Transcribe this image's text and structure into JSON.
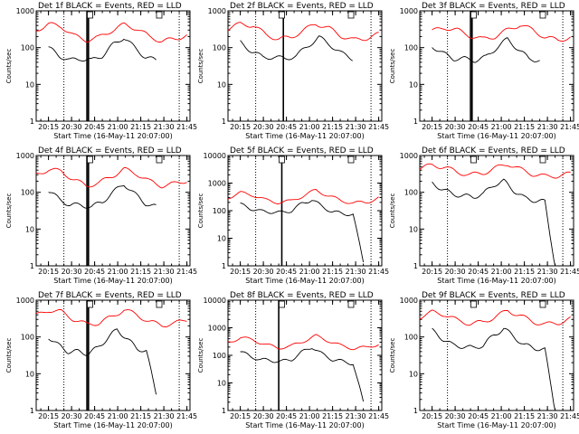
{
  "chart_data": [
    {
      "type": "line",
      "title": "Det 1f BLACK = Events, RED = LLD",
      "xlabel": "Start Time (16-May-11 20:07:00)",
      "ylabel": "Counts/sec",
      "y_scale": "log",
      "ylim": [
        1,
        1000
      ],
      "x_ticks": [
        "20:15",
        "20:30",
        "20:45",
        "21:00",
        "21:15",
        "21:30",
        "21:45"
      ],
      "y_ticks": [
        "1",
        "10",
        "100",
        "1000"
      ],
      "series": [
        {
          "color": "#000000",
          "x_start": "20:15",
          "x_end": "21:25",
          "values": [
            100,
            60,
            45,
            50,
            45,
            60,
            120,
            190,
            100,
            55,
            45
          ]
        },
        {
          "color": "#ff0000",
          "x_start": "20:07",
          "x_end": "21:45",
          "values": [
            300,
            430,
            380,
            210,
            160,
            190,
            290,
            420,
            330,
            200,
            150,
            170,
            220
          ]
        }
      ],
      "vlines_dotted": [
        "20:25",
        "21:40"
      ],
      "vlines_solid": [
        "20:40",
        "20:41"
      ],
      "markers": [
        "20:42",
        "21:27"
      ]
    },
    {
      "type": "line",
      "title": "Det 2f BLACK = Events, RED = LLD",
      "xlabel": "Start Time (16-May-11 20:07:00)",
      "ylabel": "Counts/sec",
      "y_scale": "log",
      "ylim": [
        1,
        1000
      ],
      "x_ticks": [
        "20:15",
        "20:30",
        "20:45",
        "21:00",
        "21:15",
        "21:30",
        "21:45"
      ],
      "y_ticks": [
        "1",
        "10",
        "100",
        "1000"
      ],
      "series": [
        {
          "color": "#000000",
          "x_start": "20:15",
          "x_end": "21:28",
          "values": [
            140,
            80,
            55,
            55,
            50,
            60,
            110,
            190,
            120,
            70,
            50
          ]
        },
        {
          "color": "#ff0000",
          "x_start": "20:07",
          "x_end": "21:45",
          "values": [
            330,
            440,
            400,
            230,
            170,
            190,
            290,
            450,
            340,
            210,
            160,
            180,
            230
          ]
        }
      ],
      "vlines_dotted": [
        "20:25",
        "21:40"
      ],
      "vlines_solid": [
        "20:43"
      ],
      "markers": [
        "20:42",
        "21:27"
      ]
    },
    {
      "type": "line",
      "title": "Det 3f BLACK = Events, RED = LLD",
      "xlabel": "Start Time (16-May-11 20:07:00)",
      "ylabel": "Counts/sec",
      "y_scale": "log",
      "ylim": [
        1,
        1000
      ],
      "x_ticks": [
        "20:15",
        "20:30",
        "20:45",
        "21:00",
        "21:15",
        "21:30",
        "21:45"
      ],
      "y_ticks": [
        "1",
        "10",
        "100",
        "1000"
      ],
      "series": [
        {
          "color": "#000000",
          "x_start": "20:15",
          "x_end": "21:25",
          "values": [
            110,
            70,
            50,
            50,
            45,
            55,
            100,
            170,
            90,
            50,
            45
          ]
        },
        {
          "color": "#ff0000",
          "x_start": "20:15",
          "x_end": "21:45",
          "values": [
            280,
            350,
            300,
            210,
            170,
            200,
            300,
            420,
            300,
            190,
            160,
            190
          ]
        }
      ],
      "vlines_dotted": [
        "20:25",
        "21:40"
      ],
      "vlines_solid": [
        "20:40",
        "20:41"
      ],
      "markers": [
        "20:42",
        "21:27"
      ]
    },
    {
      "type": "line",
      "title": "Det 4f BLACK = Events, RED = LLD",
      "xlabel": "Start Time (16-May-11 20:07:00)",
      "ylabel": "Counts/sec",
      "y_scale": "log",
      "ylim": [
        1,
        1000
      ],
      "x_ticks": [
        "20:15",
        "20:30",
        "20:45",
        "21:00",
        "21:15",
        "21:30",
        "21:45"
      ],
      "y_ticks": [
        "1",
        "10",
        "100",
        "1000"
      ],
      "series": [
        {
          "color": "#000000",
          "x_start": "20:15",
          "x_end": "21:25",
          "values": [
            110,
            65,
            45,
            45,
            40,
            55,
            100,
            170,
            90,
            50,
            40
          ]
        },
        {
          "color": "#ff0000",
          "x_start": "20:07",
          "x_end": "21:45",
          "values": [
            300,
            420,
            370,
            220,
            150,
            180,
            270,
            420,
            320,
            200,
            150,
            170,
            210
          ]
        }
      ],
      "vlines_dotted": [
        "20:25",
        "21:40"
      ],
      "vlines_solid": [
        "20:40",
        "20:41"
      ],
      "markers": [
        "20:42",
        "21:27"
      ]
    },
    {
      "type": "line",
      "title": "Det 5f BLACK = Events, RED = LLD",
      "xlabel": "Start Time (16-May-11 20:07:00)",
      "ylabel": "Counts/sec",
      "y_scale": "log",
      "ylim": [
        1,
        10000
      ],
      "x_ticks": [
        "20:15",
        "20:30",
        "20:45",
        "21:00",
        "21:15",
        "21:30",
        "21:45"
      ],
      "y_ticks": [
        "1",
        "10",
        "100",
        "1000",
        "10000"
      ],
      "series": [
        {
          "color": "#000000",
          "x_start": "20:15",
          "x_end": "21:35",
          "values": [
            170,
            120,
            95,
            90,
            85,
            100,
            180,
            250,
            140,
            90,
            80,
            70,
            1.5
          ]
        },
        {
          "color": "#ff0000",
          "x_start": "20:07",
          "x_end": "21:45",
          "values": [
            300,
            440,
            370,
            240,
            200,
            220,
            350,
            550,
            350,
            230,
            190,
            200,
            290
          ]
        }
      ],
      "vlines_dotted": [
        "20:25",
        "21:40"
      ],
      "vlines_solid": [
        "20:42"
      ],
      "markers": [
        "20:42",
        "21:27"
      ]
    },
    {
      "type": "line",
      "title": "Det 6f BLACK = Events, RED = LLD",
      "xlabel": "Start Time (16-May-11 20:07:00)",
      "ylabel": "Counts/sec",
      "y_scale": "log",
      "ylim": [
        1,
        1000
      ],
      "x_ticks": [
        "20:15",
        "20:30",
        "20:45",
        "21:00",
        "21:15",
        "21:30",
        "21:45"
      ],
      "y_ticks": [
        "1",
        "10",
        "100",
        "1000"
      ],
      "series": [
        {
          "color": "#000000",
          "x_start": "20:15",
          "x_end": "21:35",
          "values": [
            180,
            120,
            90,
            80,
            75,
            90,
            160,
            200,
            110,
            70,
            60,
            55,
            1
          ]
        },
        {
          "color": "#ff0000",
          "x_start": "20:07",
          "x_end": "21:45",
          "values": [
            450,
            550,
            480,
            350,
            300,
            330,
            450,
            600,
            420,
            310,
            270,
            280,
            320
          ]
        }
      ],
      "vlines_dotted": [
        "20:25",
        "21:40"
      ],
      "vlines_solid": [],
      "markers": [
        "20:42",
        "21:27"
      ]
    },
    {
      "type": "line",
      "title": "Det 7f BLACK = Events, RED = LLD",
      "xlabel": "Start Time (16-May-11 20:07:00)",
      "ylabel": "Counts/sec",
      "y_scale": "log",
      "ylim": [
        1,
        1000
      ],
      "x_ticks": [
        "20:15",
        "20:30",
        "20:45",
        "21:00",
        "21:15",
        "21:30",
        "21:45"
      ],
      "y_ticks": [
        "1",
        "10",
        "100",
        "1000"
      ],
      "series": [
        {
          "color": "#000000",
          "x_start": "20:15",
          "x_end": "21:25",
          "values": [
            100,
            60,
            40,
            40,
            35,
            50,
            90,
            160,
            90,
            50,
            40,
            3
          ]
        },
        {
          "color": "#ff0000",
          "x_start": "20:07",
          "x_end": "21:45",
          "values": [
            380,
            540,
            480,
            300,
            220,
            240,
            350,
            550,
            400,
            260,
            210,
            230,
            300
          ]
        }
      ],
      "vlines_dotted": [
        "20:25",
        "21:40"
      ],
      "vlines_solid": [
        "20:40",
        "20:41"
      ],
      "markers": [
        "20:42",
        "21:27"
      ]
    },
    {
      "type": "line",
      "title": "Det 8f BLACK = Events, RED = LLD",
      "xlabel": "Start Time (16-May-11 20:07:00)",
      "ylabel": "Counts/sec",
      "y_scale": "log",
      "ylim": [
        1,
        10000
      ],
      "x_ticks": [
        "20:15",
        "20:30",
        "20:45",
        "21:00",
        "21:15",
        "21:30",
        "21:45"
      ],
      "y_ticks": [
        "1",
        "10",
        "100",
        "1000",
        "10000"
      ],
      "series": [
        {
          "color": "#000000",
          "x_start": "20:15",
          "x_end": "21:35",
          "values": [
            140,
            90,
            70,
            65,
            60,
            70,
            130,
            200,
            110,
            70,
            60,
            50,
            2
          ]
        },
        {
          "color": "#ff0000",
          "x_start": "20:07",
          "x_end": "21:45",
          "values": [
            300,
            430,
            370,
            240,
            190,
            210,
            330,
            500,
            340,
            220,
            180,
            190,
            260
          ]
        }
      ],
      "vlines_dotted": [
        "20:25",
        "21:40"
      ],
      "vlines_solid": [
        "20:40"
      ],
      "markers": [
        "20:42",
        "21:27"
      ]
    },
    {
      "type": "line",
      "title": "Det 9f BLACK = Events, RED = LLD",
      "xlabel": "Start Time (16-May-11 20:07:00)",
      "ylabel": "Counts/sec",
      "y_scale": "log",
      "ylim": [
        1,
        1000
      ],
      "x_ticks": [
        "20:15",
        "20:30",
        "20:45",
        "21:00",
        "21:15",
        "21:30",
        "21:45"
      ],
      "y_ticks": [
        "1",
        "10",
        "100",
        "1000"
      ],
      "series": [
        {
          "color": "#000000",
          "x_start": "20:15",
          "x_end": "21:35",
          "values": [
            150,
            90,
            60,
            55,
            50,
            60,
            110,
            170,
            100,
            60,
            50,
            45,
            1
          ]
        },
        {
          "color": "#ff0000",
          "x_start": "20:07",
          "x_end": "21:45",
          "values": [
            350,
            470,
            410,
            280,
            230,
            250,
            350,
            520,
            380,
            260,
            220,
            240,
            310
          ]
        }
      ],
      "vlines_dotted": [
        "20:25",
        "21:40"
      ],
      "vlines_solid": [],
      "markers": [
        "20:42",
        "21:27"
      ]
    }
  ]
}
